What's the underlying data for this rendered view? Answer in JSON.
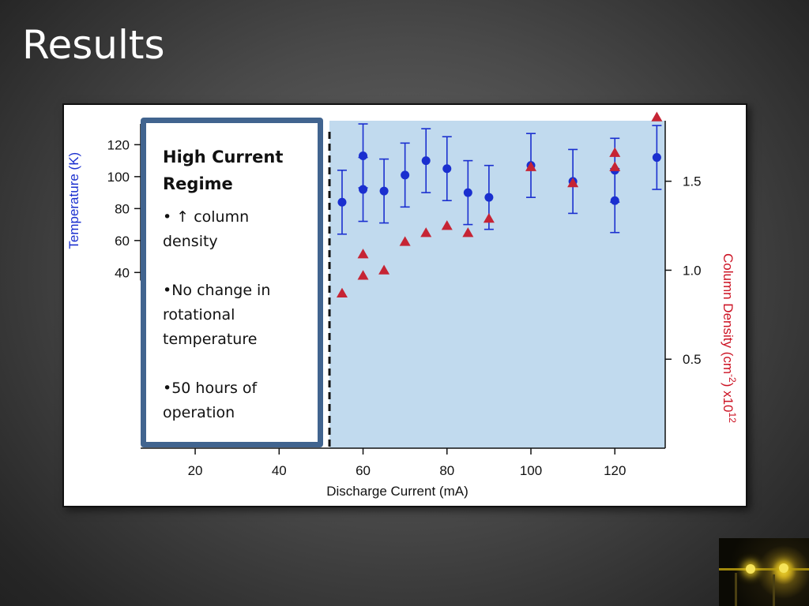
{
  "slide": {
    "title": "Results",
    "callout": {
      "heading": "High Current Regime",
      "items": [
        "• ↑ column density",
        "•No change in rotational temperature",
        "•50 hours of operation"
      ]
    },
    "photo_icon": "lab-apparatus-photo"
  },
  "chart_data": {
    "type": "scatter",
    "xlabel": "Discharge Current (mA)",
    "xlim": [
      7,
      132
    ],
    "x_ticks": [
      20,
      40,
      60,
      80,
      100,
      120
    ],
    "y_left": {
      "label": "Temperature (K)",
      "lim": [
        -70,
        135
      ],
      "ticks": [
        40,
        60,
        80,
        100,
        120
      ],
      "color": "#1a2fcf"
    },
    "y_right": {
      "label_main": "Column Density (cm",
      "label_sup1": "-2",
      "label_mid": ") x10",
      "label_sup2": "12",
      "lim": [
        0,
        1.84
      ],
      "ticks": [
        "0.5",
        "1.0",
        "1.5"
      ],
      "color": "#cc1122"
    },
    "shaded_region_x": [
      52,
      132
    ],
    "shade_color": "#c1daee",
    "divider_x": 52,
    "series": [
      {
        "axis": "left",
        "marker": "circle",
        "color": "#1a2fcf",
        "points": [
          {
            "x": 55,
            "y": 84,
            "err": 20
          },
          {
            "x": 60,
            "y": 113,
            "err": 20
          },
          {
            "x": 60,
            "y": 92,
            "err": 20
          },
          {
            "x": 65,
            "y": 91,
            "err": 20
          },
          {
            "x": 70,
            "y": 101,
            "err": 20
          },
          {
            "x": 75,
            "y": 110,
            "err": 20
          },
          {
            "x": 80,
            "y": 105,
            "err": 20
          },
          {
            "x": 85,
            "y": 90,
            "err": 20
          },
          {
            "x": 90,
            "y": 87,
            "err": 20
          },
          {
            "x": 100,
            "y": 107,
            "err": 20
          },
          {
            "x": 110,
            "y": 97,
            "err": 20
          },
          {
            "x": 120,
            "y": 104,
            "err": 20
          },
          {
            "x": 120,
            "y": 85,
            "err": 20
          },
          {
            "x": 130,
            "y": 112,
            "err": 20
          }
        ]
      },
      {
        "axis": "right",
        "marker": "triangle",
        "color": "#c62434",
        "points": [
          {
            "x": 55,
            "y": 0.87
          },
          {
            "x": 60,
            "y": 1.09
          },
          {
            "x": 60,
            "y": 0.97
          },
          {
            "x": 65,
            "y": 1.0
          },
          {
            "x": 70,
            "y": 1.16
          },
          {
            "x": 75,
            "y": 1.21
          },
          {
            "x": 80,
            "y": 1.25
          },
          {
            "x": 85,
            "y": 1.21
          },
          {
            "x": 90,
            "y": 1.29
          },
          {
            "x": 100,
            "y": 1.58
          },
          {
            "x": 110,
            "y": 1.49
          },
          {
            "x": 120,
            "y": 1.66
          },
          {
            "x": 120,
            "y": 1.58
          },
          {
            "x": 130,
            "y": 1.86
          }
        ]
      }
    ]
  }
}
